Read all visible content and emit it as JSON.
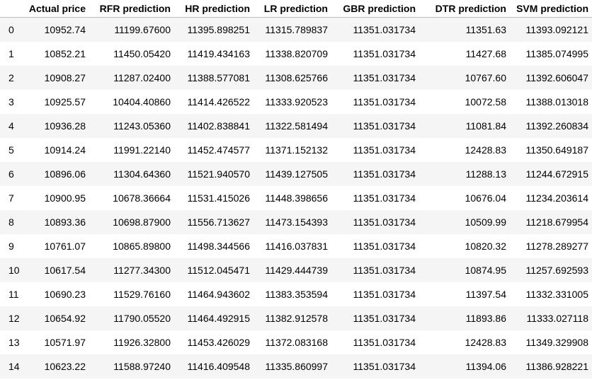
{
  "table": {
    "columns": [
      "",
      "Actual price",
      "RFR prediction",
      "HR prediction",
      "LR prediction",
      "GBR prediction",
      "DTR prediction",
      "SVM prediction"
    ],
    "rows": [
      [
        "0",
        "10952.74",
        "11199.67600",
        "11395.898251",
        "11315.789837",
        "11351.031734",
        "11351.63",
        "11393.092121"
      ],
      [
        "1",
        "10852.21",
        "11450.05420",
        "11419.434163",
        "11338.820709",
        "11351.031734",
        "11427.68",
        "11385.074995"
      ],
      [
        "2",
        "10908.27",
        "11287.02400",
        "11388.577081",
        "11308.625766",
        "11351.031734",
        "10767.60",
        "11392.606047"
      ],
      [
        "3",
        "10925.57",
        "10404.40860",
        "11414.426522",
        "11333.920523",
        "11351.031734",
        "10072.58",
        "11388.013018"
      ],
      [
        "4",
        "10936.28",
        "11243.05360",
        "11402.838841",
        "11322.581494",
        "11351.031734",
        "11081.84",
        "11392.260834"
      ],
      [
        "5",
        "10914.24",
        "11991.22140",
        "11452.474577",
        "11371.152132",
        "11351.031734",
        "12428.83",
        "11350.649187"
      ],
      [
        "6",
        "10896.06",
        "11304.64360",
        "11521.940570",
        "11439.127505",
        "11351.031734",
        "11288.13",
        "11244.672915"
      ],
      [
        "7",
        "10900.95",
        "10678.36664",
        "11531.415026",
        "11448.398656",
        "11351.031734",
        "10676.04",
        "11234.203614"
      ],
      [
        "8",
        "10893.36",
        "10698.87900",
        "11556.713627",
        "11473.154393",
        "11351.031734",
        "10509.99",
        "11218.679954"
      ],
      [
        "9",
        "10761.07",
        "10865.89800",
        "11498.344566",
        "11416.037831",
        "11351.031734",
        "10820.32",
        "11278.289277"
      ],
      [
        "10",
        "10617.54",
        "11277.34300",
        "11512.045471",
        "11429.444739",
        "11351.031734",
        "10874.95",
        "11257.692593"
      ],
      [
        "11",
        "10690.23",
        "11529.76160",
        "11464.943602",
        "11383.353594",
        "11351.031734",
        "11397.54",
        "11332.331005"
      ],
      [
        "12",
        "10654.92",
        "11790.05520",
        "11464.492915",
        "11382.912578",
        "11351.031734",
        "11893.86",
        "11333.027118"
      ],
      [
        "13",
        "10571.97",
        "11926.32800",
        "11453.426029",
        "11372.083168",
        "11351.031734",
        "12428.83",
        "11349.329908"
      ],
      [
        "14",
        "10623.22",
        "11588.97240",
        "11416.409548",
        "11335.860997",
        "11351.031734",
        "11394.06",
        "11386.928221"
      ]
    ]
  }
}
